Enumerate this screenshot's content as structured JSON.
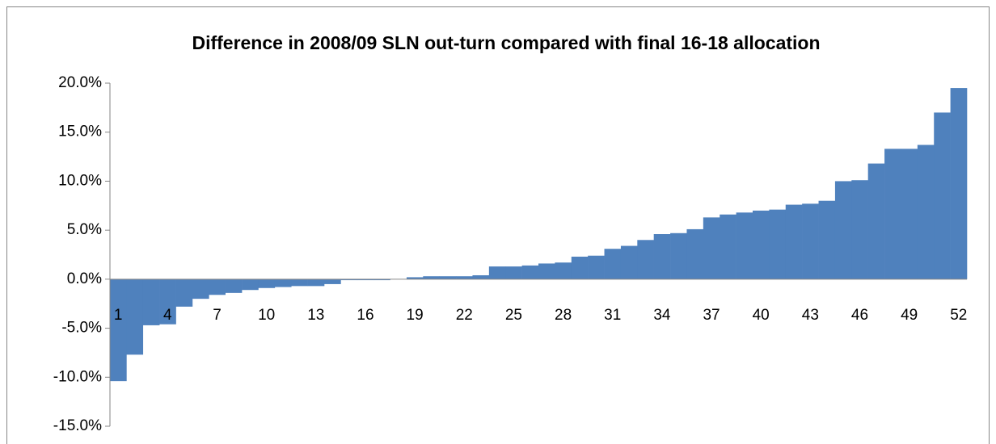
{
  "chart_data": {
    "type": "bar",
    "title": "Difference in 2008/09 SLN out-turn compared with final 16-18 allocation",
    "categories": [
      "1",
      null,
      null,
      "4",
      null,
      null,
      "7",
      null,
      null,
      "10",
      null,
      null,
      "13",
      null,
      null,
      "16",
      null,
      null,
      "19",
      null,
      null,
      "22",
      null,
      null,
      "25",
      null,
      null,
      "28",
      null,
      null,
      "31",
      null,
      null,
      "34",
      null,
      null,
      "37",
      null,
      null,
      "40",
      null,
      null,
      "43",
      null,
      null,
      "46",
      null,
      null,
      "49",
      null,
      null,
      "52"
    ],
    "values": [
      -10.4,
      -7.7,
      -4.7,
      -4.6,
      -2.8,
      -2.0,
      -1.6,
      -1.4,
      -1.1,
      -0.9,
      -0.8,
      -0.7,
      -0.7,
      -0.5,
      -0.1,
      -0.1,
      -0.1,
      0.0,
      0.2,
      0.3,
      0.3,
      0.3,
      0.4,
      1.3,
      1.3,
      1.4,
      1.6,
      1.7,
      2.3,
      2.4,
      3.1,
      3.4,
      4.0,
      4.6,
      4.7,
      5.1,
      6.3,
      6.6,
      6.8,
      7.0,
      7.1,
      7.6,
      7.7,
      8.0,
      10.0,
      10.1,
      11.8,
      13.3,
      13.3,
      13.7,
      17.0,
      19.5
    ],
    "color": "#4f81bd",
    "ylim": [
      -15,
      20
    ],
    "yticks": [
      {
        "value": -15,
        "label": "-15.0%"
      },
      {
        "value": -10,
        "label": "-10.0%"
      },
      {
        "value": -5,
        "label": "-5.0%"
      },
      {
        "value": 0,
        "label": "0.0%"
      },
      {
        "value": 5,
        "label": "5.0%"
      },
      {
        "value": 10,
        "label": "10.0%"
      },
      {
        "value": 15,
        "label": "15.0%"
      },
      {
        "value": 20,
        "label": "20.0%"
      }
    ]
  }
}
